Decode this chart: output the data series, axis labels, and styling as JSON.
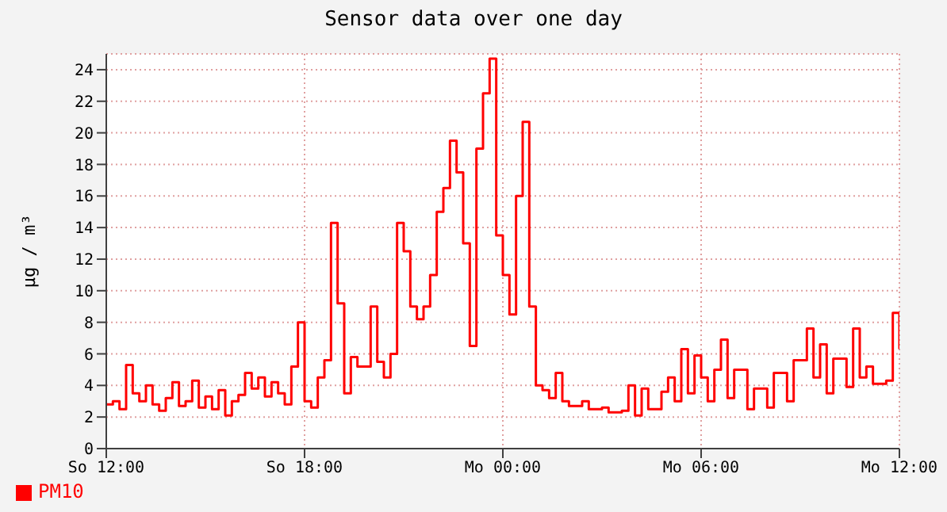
{
  "chart_data": {
    "type": "step",
    "title": "Sensor data over one day",
    "ylabel": "µg / m³",
    "categories": [
      "So 12:00",
      null,
      null,
      null,
      null,
      null,
      null,
      null,
      null,
      null,
      null,
      null,
      null,
      null,
      null,
      null,
      null,
      null,
      null,
      null,
      null,
      null,
      null,
      null,
      null,
      null,
      null,
      null,
      null,
      null,
      "So 18:00",
      null,
      null,
      null,
      null,
      null,
      null,
      null,
      null,
      null,
      null,
      null,
      null,
      null,
      null,
      null,
      null,
      null,
      null,
      null,
      null,
      null,
      null,
      null,
      null,
      null,
      null,
      null,
      null,
      null,
      "Mo 00:00",
      null,
      null,
      null,
      null,
      null,
      null,
      null,
      null,
      null,
      null,
      null,
      null,
      null,
      null,
      null,
      null,
      null,
      null,
      null,
      null,
      null,
      null,
      null,
      null,
      null,
      null,
      null,
      null,
      null,
      "Mo 06:00",
      null,
      null,
      null,
      null,
      null,
      null,
      null,
      null,
      null,
      null,
      null,
      null,
      null,
      null,
      null,
      null,
      null,
      null,
      null,
      null,
      null,
      null,
      null,
      null,
      null,
      null,
      null,
      null,
      null,
      "Mo 12:00"
    ],
    "series": [
      {
        "name": "PM10",
        "color": "#ff0000",
        "values": [
          2.8,
          3.0,
          2.5,
          5.3,
          3.5,
          3.0,
          4.0,
          2.8,
          2.4,
          3.2,
          4.2,
          2.7,
          3.0,
          4.3,
          2.6,
          3.3,
          2.5,
          3.7,
          2.1,
          3.0,
          3.4,
          4.8,
          3.8,
          4.5,
          3.3,
          4.2,
          3.5,
          2.8,
          5.2,
          8.0,
          3.0,
          2.6,
          4.5,
          5.6,
          14.3,
          9.2,
          3.5,
          5.8,
          5.2,
          5.2,
          9.0,
          5.5,
          4.5,
          6.0,
          14.3,
          12.5,
          9.0,
          8.2,
          9.0,
          11.0,
          15.0,
          16.5,
          19.5,
          17.5,
          13.0,
          6.5,
          19.0,
          22.5,
          24.7,
          13.5,
          11.0,
          8.5,
          16.0,
          20.7,
          9.0,
          4.0,
          3.7,
          3.2,
          4.8,
          3.0,
          2.7,
          2.7,
          3.0,
          2.5,
          2.5,
          2.6,
          2.3,
          2.3,
          2.4,
          4.0,
          2.1,
          3.8,
          2.5,
          2.5,
          3.6,
          4.5,
          3.0,
          6.3,
          3.5,
          5.9,
          4.5,
          3.0,
          5.0,
          6.9,
          3.2,
          5.0,
          5.0,
          2.5,
          3.8,
          3.8,
          2.6,
          4.8,
          4.8,
          3.0,
          5.6,
          5.6,
          7.6,
          4.5,
          6.6,
          3.5,
          5.7,
          5.7,
          3.9,
          7.6,
          4.5,
          5.2,
          4.1,
          4.1,
          4.3,
          8.6,
          6.3
        ]
      }
    ],
    "ylim": [
      0,
      25
    ],
    "yticks": [
      0,
      2,
      4,
      6,
      8,
      10,
      12,
      14,
      16,
      18,
      20,
      22,
      24
    ],
    "grid": true,
    "legend": "bottom left",
    "line_style": "solid",
    "marker": "none"
  }
}
